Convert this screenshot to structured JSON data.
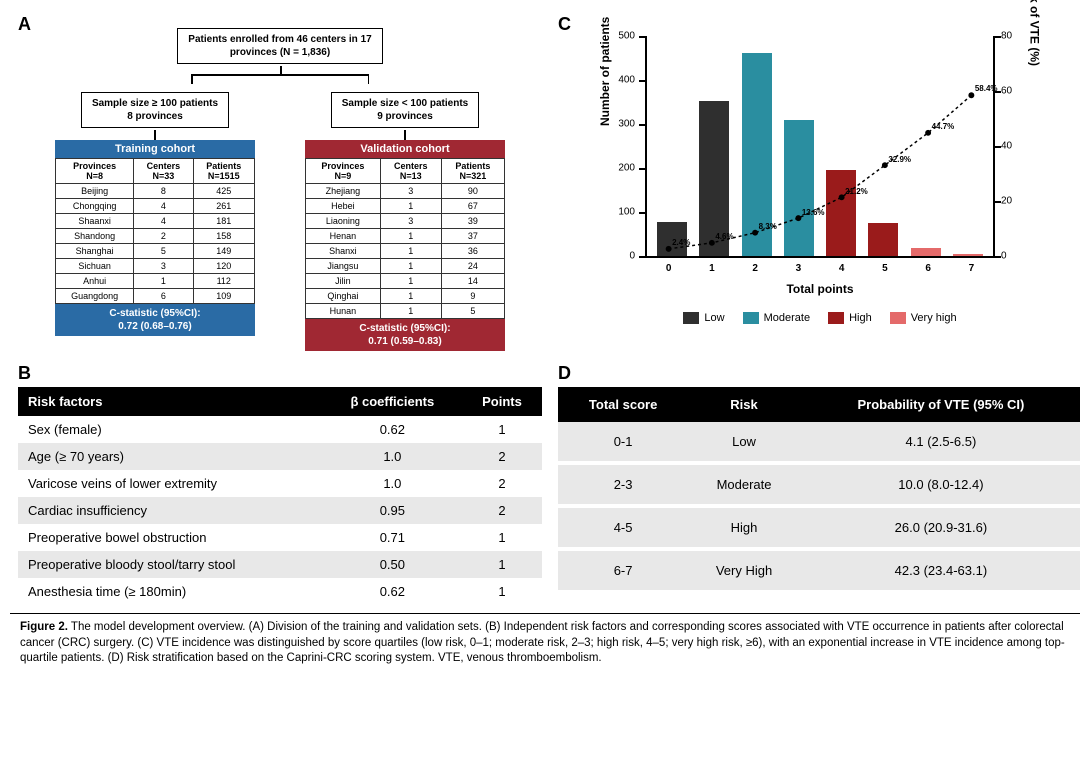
{
  "labels": {
    "A": "A",
    "B": "B",
    "C": "C",
    "D": "D"
  },
  "panelA": {
    "root": "Patients enrolled from 46 centers in 17\nprovinces (N = 1,836)",
    "left_box": "Sample size ≥ 100 patients\n8 provinces",
    "right_box": "Sample size < 100 patients\n9 provinces",
    "training": {
      "title": "Training cohort",
      "header_color": "#2a6ba5",
      "summary": [
        "Provinces\nN=8",
        "Centers\nN=33",
        "Patients\nN=1515"
      ],
      "rows": [
        [
          "Beijing",
          "8",
          "425"
        ],
        [
          "Chongqing",
          "4",
          "261"
        ],
        [
          "Shaanxi",
          "4",
          "181"
        ],
        [
          "Shandong",
          "2",
          "158"
        ],
        [
          "Shanghai",
          "5",
          "149"
        ],
        [
          "Sichuan",
          "3",
          "120"
        ],
        [
          "Anhui",
          "1",
          "112"
        ],
        [
          "Guangdong",
          "6",
          "109"
        ]
      ],
      "footer": "C-statistic (95%CI):\n0.72 (0.68–0.76)"
    },
    "validation": {
      "title": "Validation cohort",
      "header_color": "#a02833",
      "summary": [
        "Provinces\nN=9",
        "Centers\nN=13",
        "Patients\nN=321"
      ],
      "rows": [
        [
          "Zhejiang",
          "3",
          "90"
        ],
        [
          "Hebei",
          "1",
          "67"
        ],
        [
          "Liaoning",
          "3",
          "39"
        ],
        [
          "Henan",
          "1",
          "37"
        ],
        [
          "Shanxi",
          "1",
          "36"
        ],
        [
          "Jiangsu",
          "1",
          "24"
        ],
        [
          "Jilin",
          "1",
          "14"
        ],
        [
          "Qinghai",
          "1",
          "9"
        ],
        [
          "Hunan",
          "1",
          "5"
        ]
      ],
      "footer": "C-statistic (95%CI):\n0.71 (0.59–0.83)"
    }
  },
  "panelB": {
    "headers": [
      "Risk factors",
      "β coefficients",
      "Points"
    ],
    "rows": [
      [
        "Sex (female)",
        "0.62",
        "1"
      ],
      [
        "Age (≥ 70 years)",
        "1.0",
        "2"
      ],
      [
        "Varicose veins of lower extremity",
        "1.0",
        "2"
      ],
      [
        "Cardiac insufficiency",
        "0.95",
        "2"
      ],
      [
        "Preoperative bowel obstruction",
        "0.71",
        "1"
      ],
      [
        "Preoperative bloody stool/tarry stool",
        "0.50",
        "1"
      ],
      [
        "Anesthesia time (≥ 180min)",
        "0.62",
        "1"
      ]
    ]
  },
  "panelC": {
    "yl_title": "Number of patients",
    "yr_title": "Risk of VTE (%)",
    "x_title": "Total points",
    "yl_max": 500,
    "yl_step": 100,
    "yr_max": 80,
    "yr_step": 20,
    "x_categories": [
      "0",
      "1",
      "2",
      "3",
      "4",
      "5",
      "6",
      "7"
    ],
    "bars": [
      {
        "v": 78,
        "c": "#2f2f2f"
      },
      {
        "v": 352,
        "c": "#2f2f2f"
      },
      {
        "v": 462,
        "c": "#2a8ea0"
      },
      {
        "v": 308,
        "c": "#2a8ea0"
      },
      {
        "v": 196,
        "c": "#9a1b1b"
      },
      {
        "v": 75,
        "c": "#9a1b1b"
      },
      {
        "v": 18,
        "c": "#e46a6a"
      },
      {
        "v": 5,
        "c": "#e46a6a"
      }
    ],
    "line_pct": [
      2.4,
      4.6,
      8.3,
      13.6,
      21.2,
      32.9,
      44.7,
      58.4
    ],
    "pct_labels": [
      "2.4%",
      "4.6%",
      "8.3%",
      "13.6%",
      "21.2%",
      "32.9%",
      "44.7%",
      "58.4%"
    ],
    "legend": [
      {
        "label": "Low",
        "c": "#2f2f2f"
      },
      {
        "label": "Moderate",
        "c": "#2a8ea0"
      },
      {
        "label": "High",
        "c": "#9a1b1b"
      },
      {
        "label": "Very high",
        "c": "#e46a6a"
      }
    ]
  },
  "panelD": {
    "headers": [
      "Total score",
      "Risk",
      "Probability of VTE (95% CI)"
    ],
    "rows": [
      [
        "0-1",
        "Low",
        "4.1 (2.5-6.5)"
      ],
      [
        "2-3",
        "Moderate",
        "10.0 (8.0-12.4)"
      ],
      [
        "4-5",
        "High",
        "26.0 (20.9-31.6)"
      ],
      [
        "6-7",
        "Very High",
        "42.3 (23.4-63.1)"
      ]
    ]
  },
  "caption": {
    "lead": "Figure 2.",
    "text": " The model development overview. (A) Division of the training and validation sets. (B) Independent risk factors and corresponding scores associated with VTE occurrence in patients after colorectal cancer (CRC) surgery. (C) VTE incidence was distinguished by score quartiles (low risk, 0–1; moderate risk, 2–3; high risk, 4–5; very high risk, ≥6), with an exponential increase in VTE incidence among top-quartile patients. (D) Risk stratification based on the Caprini-CRC scoring system. VTE, venous thromboembolism."
  }
}
